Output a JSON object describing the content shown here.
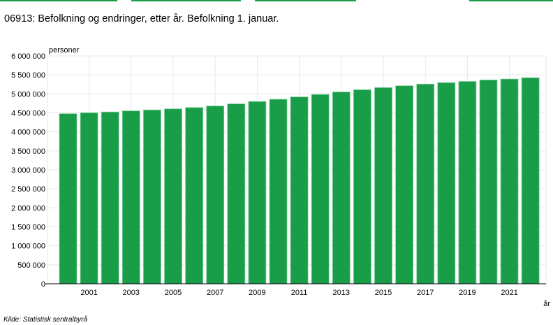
{
  "title": "06913: Befolkning og endringer, etter år. Befolkning 1. januar.",
  "source": "Kilde:  Statistisk sentralbyrå",
  "colors": {
    "bar": "#1a9d49",
    "bar_border": "#7fcf9a",
    "grid": "#e6e9e8",
    "tabs": "#1a9d49"
  },
  "chart_data": {
    "type": "bar",
    "title": "06913: Befolkning og endringer, etter år. Befolkning 1. januar.",
    "ylabel": "personer",
    "xlabel": "år",
    "ylim": [
      0,
      6000000
    ],
    "yticks": [
      "0",
      "500 000",
      "1 000 000",
      "1 500 000",
      "2 000 000",
      "2 500 000",
      "3 000 000",
      "3 500 000",
      "4 000 000",
      "4 500 000",
      "5 000 000",
      "5 500 000",
      "6 000 000"
    ],
    "categories": [
      "2000",
      "2001",
      "2002",
      "2003",
      "2004",
      "2005",
      "2006",
      "2007",
      "2008",
      "2009",
      "2010",
      "2011",
      "2012",
      "2013",
      "2014",
      "2015",
      "2016",
      "2017",
      "2018",
      "2019",
      "2020",
      "2021",
      "2022"
    ],
    "xtick_labels": [
      "2001",
      "2003",
      "2005",
      "2007",
      "2009",
      "2011",
      "2013",
      "2015",
      "2017",
      "2019",
      "2021"
    ],
    "values": [
      4478497,
      4503436,
      4524066,
      4552252,
      4577457,
      4606363,
      4640219,
      4681134,
      4737171,
      4799252,
      4858199,
      4920305,
      4985870,
      5051275,
      5109056,
      5165802,
      5213985,
      5258317,
      5295619,
      5328212,
      5367580,
      5391369,
      5425270
    ],
    "grid": true,
    "legend": "none"
  }
}
